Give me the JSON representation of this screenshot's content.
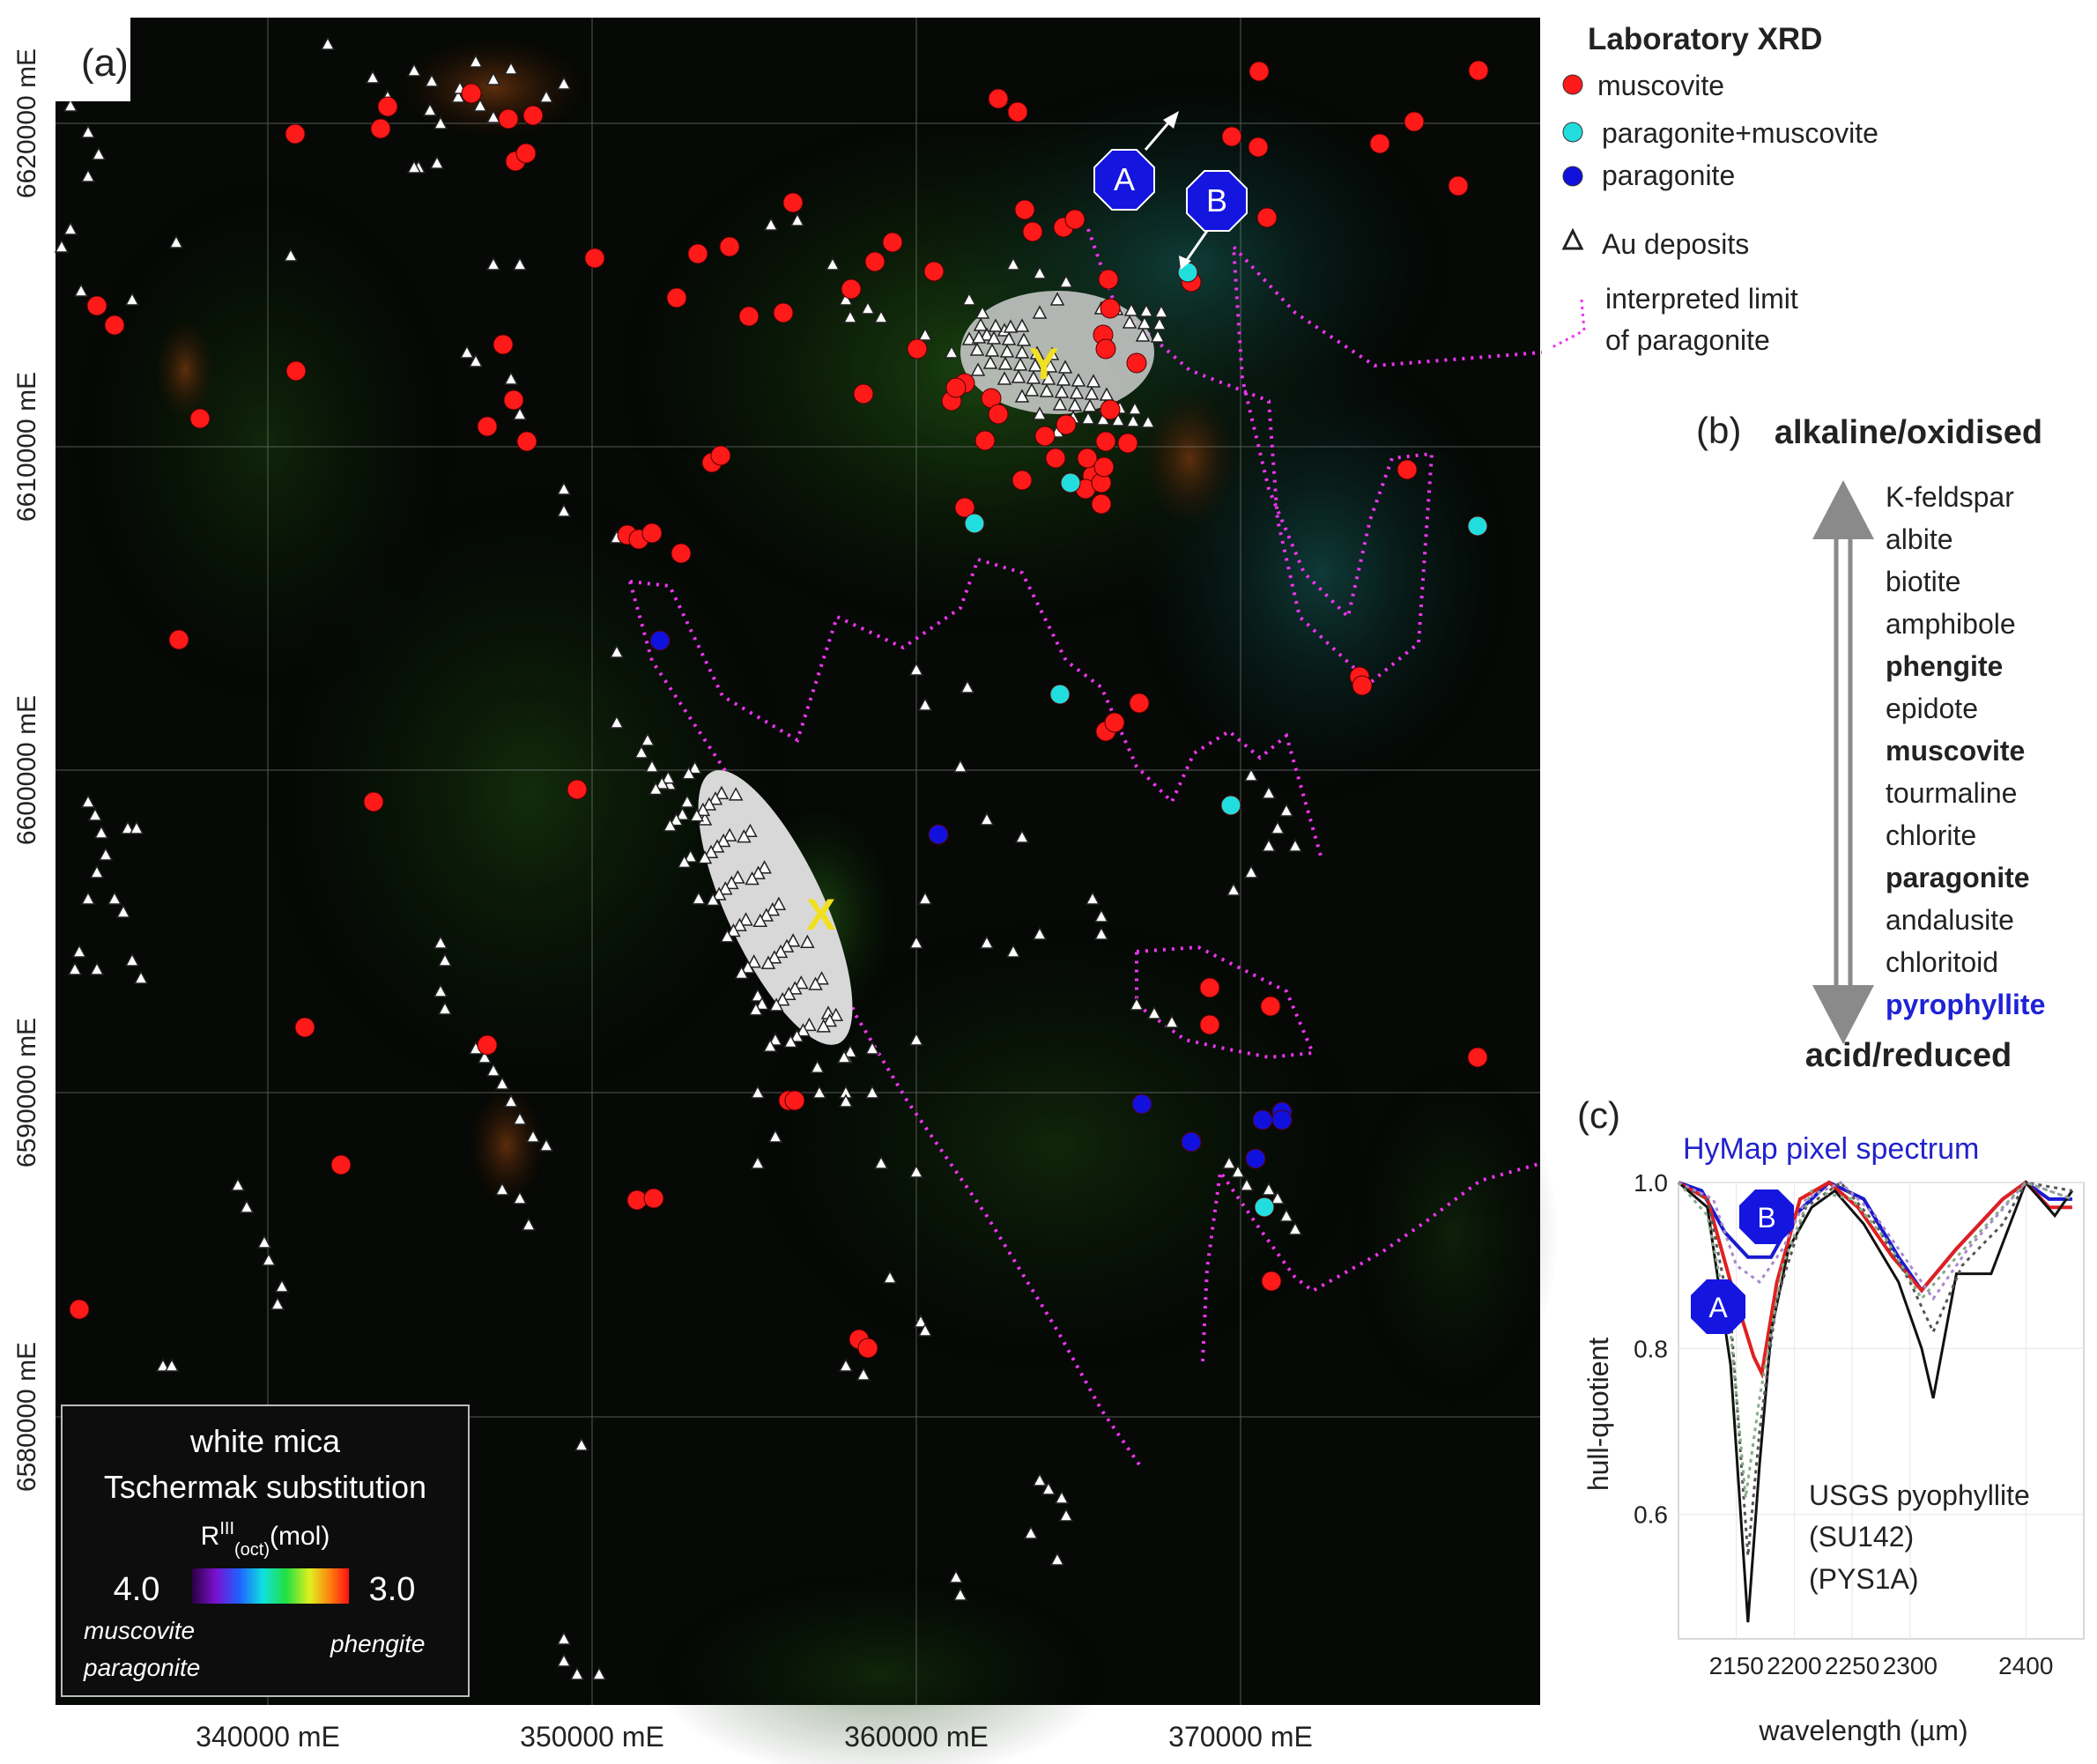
{
  "panel_a": {
    "label": "(a)",
    "easting_labels": [
      "340000 mE",
      "350000 mE",
      "360000 mE",
      "370000 mE"
    ],
    "northing_labels": [
      "6620000 mE",
      "6610000 mE",
      "6600000 mE",
      "6590000 mE",
      "6580000 mE"
    ],
    "site_labels": [
      "X",
      "Y"
    ],
    "markers": [
      {
        "label": "A"
      },
      {
        "label": "B"
      }
    ],
    "colorbar": {
      "title_line1": "white mica",
      "title_line2": "Tschermak substitution",
      "unit": "R",
      "unit_sup": "III",
      "unit_sub": "(oct)",
      "unit_tail": "(mol)",
      "min_label": "4.0",
      "max_label": "3.0",
      "left_caption_1": "muscovite",
      "left_caption_2": "paragonite",
      "right_caption": "phengite"
    }
  },
  "legend": {
    "title": "Laboratory XRD",
    "items": [
      {
        "label": "muscovite",
        "color": "#ff1a1a"
      },
      {
        "label": "paragonite+muscovite",
        "color": "#22dddd"
      },
      {
        "label": "paragonite",
        "color": "#1111dd"
      },
      {
        "label": "Au deposits"
      }
    ],
    "limit_line1": "interpreted limit",
    "limit_line2": "of paragonite",
    "limit_color": "#ee33ee"
  },
  "panel_b": {
    "label": "(b)",
    "top": "alkaline/oxidised",
    "bottom": "acid/reduced",
    "minerals": [
      {
        "name": "K-feldspar",
        "style": "normal"
      },
      {
        "name": "albite",
        "style": "normal"
      },
      {
        "name": "biotite",
        "style": "normal"
      },
      {
        "name": "amphibole",
        "style": "normal"
      },
      {
        "name": "phengite",
        "style": "bold"
      },
      {
        "name": "epidote",
        "style": "normal"
      },
      {
        "name": "muscovite",
        "style": "bold"
      },
      {
        "name": "tourmaline",
        "style": "normal"
      },
      {
        "name": "chlorite",
        "style": "normal"
      },
      {
        "name": "paragonite",
        "style": "bold"
      },
      {
        "name": "andalusite",
        "style": "normal"
      },
      {
        "name": "chloritoid",
        "style": "normal"
      },
      {
        "name": "pyrophyllite",
        "style": "bold-blue"
      }
    ]
  },
  "panel_c": {
    "label": "(c)",
    "title": "HyMap pixel spectrum",
    "ylabel": "hull-quotient",
    "xlabel": "wavelength (µm)",
    "annotation_lines": [
      "USGS pyophyllite",
      "(SU142)",
      "(PYS1A)"
    ],
    "marker_a": "A",
    "marker_b": "B"
  },
  "chart_data": {
    "type": "line",
    "title": "HyMap pixel spectrum",
    "xlabel": "wavelength (µm)",
    "ylabel": "hull-quotient",
    "xlim": [
      2100,
      2450
    ],
    "ylim": [
      0.45,
      1.0
    ],
    "x_ticks": [
      2150,
      2200,
      2250,
      2300,
      2400
    ],
    "x_tick_labels": [
      "2150",
      "2200",
      "2250",
      "2300",
      "2400"
    ],
    "y_ticks": [
      0.6,
      0.8,
      1.0
    ],
    "y_tick_labels": [
      "0.6",
      "0.8",
      "1.0"
    ],
    "series": [
      {
        "color": "#1a1ad0",
        "width": 4,
        "dash": "",
        "points": [
          [
            2100,
            1.0
          ],
          [
            2120,
            0.99
          ],
          [
            2140,
            0.94
          ],
          [
            2160,
            0.91
          ],
          [
            2180,
            0.91
          ],
          [
            2200,
            0.96
          ],
          [
            2230,
            1.0
          ],
          [
            2260,
            0.98
          ],
          [
            2290,
            0.91
          ],
          [
            2310,
            0.87
          ],
          [
            2340,
            0.92
          ],
          [
            2380,
            0.98
          ],
          [
            2400,
            1.0
          ],
          [
            2420,
            0.98
          ],
          [
            2440,
            0.98
          ]
        ]
      },
      {
        "color": "#e02020",
        "width": 4,
        "dash": "",
        "points": [
          [
            2100,
            1.0
          ],
          [
            2125,
            0.98
          ],
          [
            2145,
            0.88
          ],
          [
            2165,
            0.79
          ],
          [
            2172,
            0.77
          ],
          [
            2185,
            0.88
          ],
          [
            2205,
            0.98
          ],
          [
            2230,
            1.0
          ],
          [
            2255,
            0.97
          ],
          [
            2285,
            0.91
          ],
          [
            2310,
            0.87
          ],
          [
            2340,
            0.92
          ],
          [
            2380,
            0.98
          ],
          [
            2400,
            1.0
          ],
          [
            2420,
            0.97
          ],
          [
            2440,
            0.97
          ]
        ]
      },
      {
        "color": "#111111",
        "width": 3,
        "dash": "",
        "points": [
          [
            2100,
            1.0
          ],
          [
            2125,
            0.97
          ],
          [
            2145,
            0.78
          ],
          [
            2160,
            0.47
          ],
          [
            2170,
            0.66
          ],
          [
            2180,
            0.82
          ],
          [
            2195,
            0.92
          ],
          [
            2215,
            0.97
          ],
          [
            2235,
            0.99
          ],
          [
            2260,
            0.95
          ],
          [
            2290,
            0.88
          ],
          [
            2310,
            0.8
          ],
          [
            2320,
            0.74
          ],
          [
            2340,
            0.89
          ],
          [
            2370,
            0.89
          ],
          [
            2400,
            1.0
          ],
          [
            2425,
            0.96
          ],
          [
            2440,
            0.99
          ]
        ]
      },
      {
        "color": "#555555",
        "width": 3,
        "dash": "4,5",
        "points": [
          [
            2100,
            1.0
          ],
          [
            2125,
            0.98
          ],
          [
            2145,
            0.84
          ],
          [
            2160,
            0.55
          ],
          [
            2170,
            0.7
          ],
          [
            2185,
            0.86
          ],
          [
            2210,
            0.97
          ],
          [
            2240,
            1.0
          ],
          [
            2270,
            0.95
          ],
          [
            2300,
            0.88
          ],
          [
            2320,
            0.82
          ],
          [
            2345,
            0.9
          ],
          [
            2380,
            0.95
          ],
          [
            2400,
            1.0
          ],
          [
            2440,
            0.99
          ]
        ]
      },
      {
        "color": "#aa88cc",
        "width": 3,
        "dash": "4,5",
        "points": [
          [
            2100,
            1.0
          ],
          [
            2130,
            0.98
          ],
          [
            2150,
            0.9
          ],
          [
            2170,
            0.88
          ],
          [
            2190,
            0.92
          ],
          [
            2210,
            0.98
          ],
          [
            2240,
            1.0
          ],
          [
            2270,
            0.96
          ],
          [
            2300,
            0.9
          ],
          [
            2320,
            0.86
          ],
          [
            2350,
            0.92
          ],
          [
            2400,
            1.0
          ],
          [
            2440,
            0.98
          ]
        ]
      },
      {
        "color": "#88aa88",
        "width": 3,
        "dash": "4,5",
        "points": [
          [
            2100,
            1.0
          ],
          [
            2125,
            0.96
          ],
          [
            2145,
            0.82
          ],
          [
            2158,
            0.62
          ],
          [
            2170,
            0.74
          ],
          [
            2190,
            0.9
          ],
          [
            2215,
            0.99
          ],
          [
            2250,
            0.98
          ],
          [
            2280,
            0.93
          ],
          [
            2310,
            0.86
          ],
          [
            2340,
            0.91
          ],
          [
            2400,
            1.0
          ],
          [
            2440,
            0.98
          ]
        ]
      }
    ]
  }
}
